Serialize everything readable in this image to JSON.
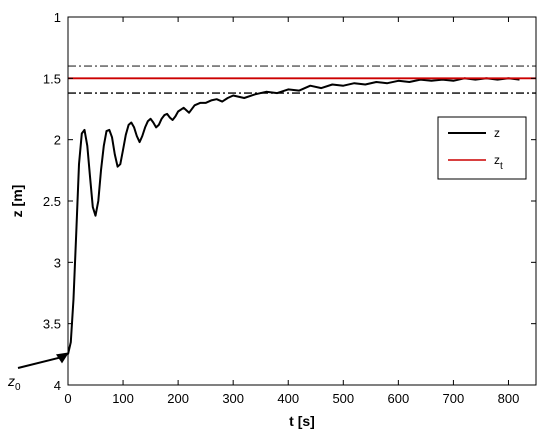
{
  "chart_data": {
    "type": "line",
    "xlabel": "t [s]",
    "ylabel": "z [m]",
    "xlim": [
      0,
      850
    ],
    "ylim": [
      1,
      4
    ],
    "y_reversed": true,
    "grid": false,
    "legend_position": "right",
    "x_ticks": [
      0,
      100,
      200,
      300,
      400,
      500,
      600,
      700,
      800
    ],
    "x_tick_labels": [
      "0",
      "100",
      "200",
      "300",
      "400",
      "500",
      "600",
      "700",
      "800"
    ],
    "y_ticks": [
      1,
      1.5,
      2,
      2.5,
      3,
      3.5,
      4
    ],
    "y_tick_labels": [
      "1",
      "1.5",
      "2",
      "2.5",
      "3",
      "3.5",
      "4"
    ],
    "series": [
      {
        "name": "z",
        "color": "#000000",
        "x": [
          0,
          5,
          10,
          15,
          20,
          25,
          30,
          35,
          40,
          45,
          50,
          55,
          60,
          65,
          70,
          75,
          80,
          85,
          90,
          95,
          100,
          105,
          110,
          115,
          120,
          125,
          130,
          135,
          140,
          145,
          150,
          155,
          160,
          165,
          170,
          175,
          180,
          185,
          190,
          195,
          200,
          210,
          220,
          230,
          240,
          250,
          260,
          270,
          280,
          290,
          300,
          320,
          340,
          360,
          380,
          400,
          420,
          440,
          460,
          480,
          500,
          520,
          540,
          560,
          580,
          600,
          620,
          640,
          660,
          680,
          700,
          720,
          740,
          760,
          780,
          800,
          820
        ],
        "y": [
          3.75,
          3.65,
          3.3,
          2.75,
          2.2,
          1.95,
          1.92,
          2.05,
          2.3,
          2.55,
          2.62,
          2.5,
          2.25,
          2.05,
          1.93,
          1.92,
          1.98,
          2.12,
          2.22,
          2.2,
          2.08,
          1.96,
          1.88,
          1.86,
          1.9,
          1.97,
          2.02,
          1.97,
          1.9,
          1.85,
          1.83,
          1.86,
          1.9,
          1.88,
          1.83,
          1.8,
          1.79,
          1.82,
          1.84,
          1.81,
          1.77,
          1.74,
          1.78,
          1.72,
          1.7,
          1.7,
          1.68,
          1.67,
          1.69,
          1.66,
          1.64,
          1.66,
          1.63,
          1.61,
          1.62,
          1.59,
          1.6,
          1.56,
          1.58,
          1.55,
          1.56,
          1.54,
          1.55,
          1.53,
          1.54,
          1.52,
          1.53,
          1.51,
          1.52,
          1.51,
          1.52,
          1.5,
          1.51,
          1.5,
          1.51,
          1.5,
          1.51
        ]
      },
      {
        "name": "z_t",
        "legend_label": "z",
        "legend_subscript": "t",
        "color": "#cc0000",
        "x": [
          0,
          850
        ],
        "y": [
          1.5,
          1.5
        ]
      }
    ],
    "reference_lines": [
      {
        "y": 1.4,
        "style": "dash-dot",
        "color": "#555555"
      },
      {
        "y": 1.62,
        "style": "dash-dot",
        "color": "#000000"
      }
    ],
    "annotations": [
      {
        "text": "z",
        "subscript": "0",
        "arrow_to_x": 0,
        "arrow_to_y": 3.75
      }
    ]
  }
}
